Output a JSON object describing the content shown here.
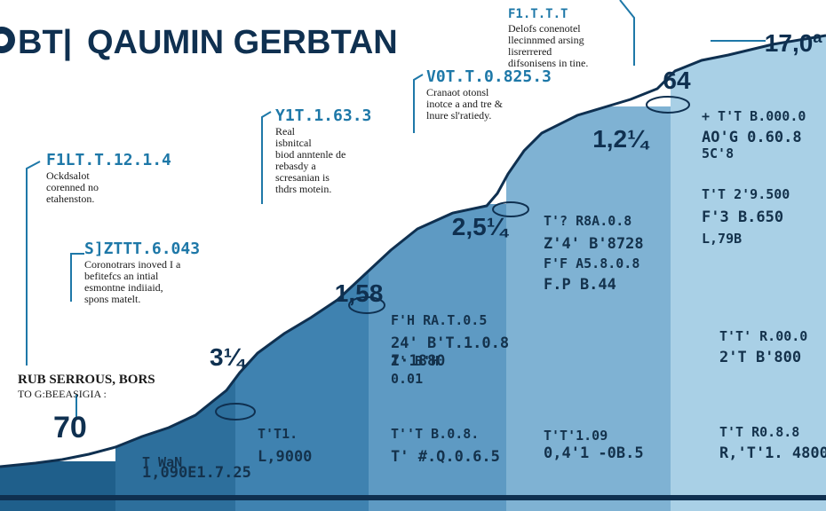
{
  "header": {
    "logo_mark": "BT|",
    "title": "QAUMIN GERBTAN"
  },
  "chart_data": {
    "type": "area",
    "title": "QAUMIN GERBTAN",
    "xlabel": "",
    "ylabel": "",
    "grid": false,
    "legend": "none",
    "colors": {
      "dark": "#1f5f8b",
      "mid": "#3f88b6",
      "light": "#9ccbe3",
      "pale": "#cfe6f2",
      "line": "#0f3050",
      "accent": "#1e78a8"
    },
    "milestones": [
      {
        "label": "70",
        "x": 0.5,
        "y": 0.7
      },
      {
        "label": "3¼",
        "x": 2.5,
        "y": 3.4
      },
      {
        "label": "1,58",
        "x": 4.1,
        "y": 5.8
      },
      {
        "label": "2,5¼",
        "x": 5.6,
        "y": 8.3
      },
      {
        "label": "1,2¼",
        "x": 7.4,
        "y": 11.6
      },
      {
        "label": "64",
        "x": 8.3,
        "y": 13.8
      },
      {
        "label": "17,0ª",
        "x": 9.6,
        "y": 15.2
      }
    ]
  },
  "annotations": [
    {
      "title": "RUB SERROUS, BORS",
      "lines": [
        "TO G:BEEASIGIA :"
      ]
    },
    {
      "title": "S]ZTTT.6.043",
      "lines": [
        "Coronotrars inoved I a",
        "befitefcs an intial",
        "esmontne indiiaid,",
        "spons matelt."
      ]
    },
    {
      "title": "F1LT.T.12.1.4",
      "lines": [
        "Ockdsalot",
        "corenned no",
        "etahenston."
      ]
    },
    {
      "title": "Y1T.1.63.3",
      "lines": [
        "Real",
        "isbnitcal",
        "biod anntenle de",
        "rebasdy a",
        "scresanian is",
        "thdrs motein."
      ]
    },
    {
      "title": "V0T.T.0.825.3",
      "lines": [
        "Cranaot otonsl",
        "inotce a and tre &",
        "lnure sl'ratiedy."
      ]
    },
    {
      "title": "F1.T.T.T",
      "lines": [
        "Delofs conenotel",
        "llecinnmed arsing",
        "lisrerrered",
        "difsonisens in tine."
      ]
    }
  ],
  "cells": [
    {
      "code": "T  WaN",
      "value": "1,090E1.7.25"
    },
    {
      "code": "T'T1.",
      "value": "L,9000"
    },
    {
      "code": "T''T  B.0.8.",
      "value": "T' #.Q.0.6.5"
    },
    {
      "code": "F'H  RA.T.0.5",
      "value": "24'  B'T.1.0.8"
    },
    {
      "code": "Z'  B'H",
      "value": "I·1880"
    },
    {
      "code": "0.01",
      "value": ""
    },
    {
      "code": "T'?  R8A.0.8",
      "value": "Z'4'  B'8728"
    },
    {
      "code": "F'F  A5.8.0.8",
      "value": "F.P  B.44"
    },
    {
      "code": "T'T'1.09",
      "value": "0,4'1  -0B.5"
    },
    {
      "code": "+  T'T  B.000.0",
      "value": "AO'G  0.60.8"
    },
    {
      "code": "5C'8",
      "value": ""
    },
    {
      "code": "T'T  2'9.500",
      "value": "F'3  B.650"
    },
    {
      "code": "L,79B",
      "value": ""
    },
    {
      "code": "T'T'  R.00.0",
      "value": "2'T  B'800"
    },
    {
      "code": "T'T  R0.8.8",
      "value": "R,'T'1.  4800"
    }
  ]
}
